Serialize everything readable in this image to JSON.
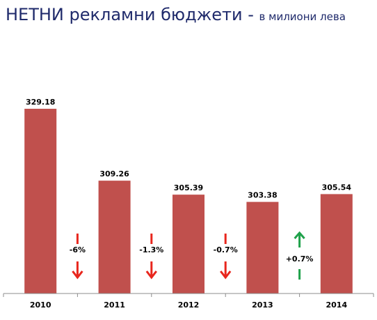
{
  "title": {
    "main": "НЕТНИ рекламни бюджети - ",
    "sub": "в милиони лева"
  },
  "chart_data": {
    "type": "bar",
    "categories": [
      "2010",
      "2011",
      "2012",
      "2013",
      "2014"
    ],
    "values": [
      329.18,
      309.26,
      305.39,
      303.38,
      305.54
    ],
    "data_labels": [
      "329.18",
      "309.26",
      "305.39",
      "303.38",
      "305.54"
    ],
    "ylim": [
      278,
      340
    ],
    "grid": false,
    "bar_color": "#c0504d",
    "changes": [
      {
        "label": "-6%",
        "direction": "down",
        "color": "#e8261d"
      },
      {
        "label": "-1.3%",
        "direction": "down",
        "color": "#e8261d"
      },
      {
        "label": "-0.7%",
        "direction": "down",
        "color": "#e8261d"
      },
      {
        "label": "+0.7%",
        "direction": "up",
        "color": "#1fa14a"
      }
    ]
  }
}
